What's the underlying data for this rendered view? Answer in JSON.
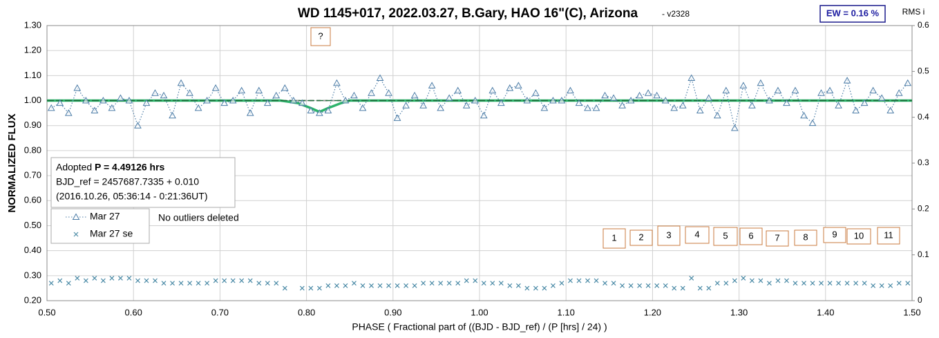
{
  "chart_data": {
    "type": "scatter",
    "title": "WD 1145+017, 2022.03.27, B.Gary, HAO 16\"(C), Arizona",
    "subtitle": "- v2328",
    "ew_label": "EW = 0.16 %",
    "y2_label": "RMS i",
    "ylabel": "NORMALIZED FLUX",
    "xlabel": "PHASE ( Fractional part of ((BJD - BJD_ref) / (P [hrs] / 24) )",
    "info": {
      "prefix": "Adopted",
      "period": "P = 4.49126 hrs",
      "line2": "BJD_ref = 2457687.7335 + 0.010",
      "line3": "(2016.10.26, 05:36:14 - 0:21:36UT)"
    },
    "note": "No outliers deleted",
    "annotations": [
      "?",
      "1",
      "2",
      "3",
      "4",
      "5",
      "6",
      "7",
      "8",
      "9",
      "10",
      "11"
    ],
    "xlim": [
      0.5,
      1.5
    ],
    "xticks": [
      {
        "value": 0.5,
        "label": "0.50"
      },
      {
        "value": 0.6,
        "label": "0.60"
      },
      {
        "value": 0.7,
        "label": "0.70"
      },
      {
        "value": 0.8,
        "label": "0.80"
      },
      {
        "value": 0.9,
        "label": "0.90"
      },
      {
        "value": 1.0,
        "label": "1.00"
      },
      {
        "value": 1.1,
        "label": "1.10"
      },
      {
        "value": 1.2,
        "label": "1.20"
      },
      {
        "value": 1.3,
        "label": "1.30"
      },
      {
        "value": 1.4,
        "label": "1.40"
      },
      {
        "value": 1.5,
        "label": "1.50"
      }
    ],
    "ylim": [
      0.2,
      1.3
    ],
    "yticks": [
      {
        "value": 0.2,
        "label": "0.20"
      },
      {
        "value": 0.3,
        "label": "0.30"
      },
      {
        "value": 0.4,
        "label": "0.40"
      },
      {
        "value": 0.5,
        "label": "0.50"
      },
      {
        "value": 0.6,
        "label": "0.60"
      },
      {
        "value": 0.7,
        "label": "0.70"
      },
      {
        "value": 0.8,
        "label": "0.80"
      },
      {
        "value": 0.9,
        "label": "0.90"
      },
      {
        "value": 1.0,
        "label": "1.00"
      },
      {
        "value": 1.1,
        "label": "1.10"
      },
      {
        "value": 1.2,
        "label": "1.20"
      },
      {
        "value": 1.3,
        "label": "1.30"
      }
    ],
    "y2lim": [
      0,
      0.6
    ],
    "y2ticks": [
      0,
      0.1,
      0.2,
      0.3,
      0.4,
      0.5,
      0.6
    ],
    "grid": true,
    "x": [
      0.505,
      0.515,
      0.525,
      0.535,
      0.545,
      0.555,
      0.565,
      0.575,
      0.585,
      0.595,
      0.605,
      0.615,
      0.625,
      0.635,
      0.645,
      0.655,
      0.665,
      0.675,
      0.685,
      0.695,
      0.705,
      0.715,
      0.725,
      0.735,
      0.745,
      0.755,
      0.765,
      0.775,
      0.785,
      0.795,
      0.805,
      0.815,
      0.825,
      0.835,
      0.845,
      0.855,
      0.865,
      0.875,
      0.885,
      0.895,
      0.905,
      0.915,
      0.925,
      0.935,
      0.945,
      0.955,
      0.965,
      0.975,
      0.985,
      0.995,
      1.005,
      1.015,
      1.025,
      1.035,
      1.045,
      1.055,
      1.065,
      1.075,
      1.085,
      1.095,
      1.105,
      1.115,
      1.125,
      1.135,
      1.145,
      1.155,
      1.165,
      1.175,
      1.185,
      1.195,
      1.205,
      1.215,
      1.225,
      1.235,
      1.245,
      1.255,
      1.265,
      1.275,
      1.285,
      1.295,
      1.305,
      1.315,
      1.325,
      1.335,
      1.345,
      1.355,
      1.365,
      1.375,
      1.385,
      1.395,
      1.405,
      1.415,
      1.425,
      1.435,
      1.445,
      1.455,
      1.465,
      1.475,
      1.485,
      1.495
    ],
    "series": [
      {
        "name": "Mar 27",
        "color": "#4a7ba6",
        "marker": "triangle",
        "values": [
          0.97,
          0.99,
          0.95,
          1.05,
          1.0,
          0.96,
          1.0,
          0.97,
          1.01,
          1.0,
          0.9,
          0.99,
          1.03,
          1.02,
          0.94,
          1.07,
          1.03,
          0.97,
          1.0,
          1.05,
          0.99,
          1.0,
          1.04,
          0.95,
          1.04,
          0.99,
          1.02,
          1.05,
          1.0,
          0.99,
          0.96,
          0.95,
          0.96,
          1.07,
          1.0,
          1.02,
          0.97,
          1.03,
          1.09,
          1.03,
          0.93,
          0.98,
          1.02,
          0.98,
          1.06,
          0.97,
          1.01,
          1.04,
          0.98,
          1.0,
          0.94,
          1.04,
          0.99,
          1.05,
          1.06,
          1.0,
          1.03,
          0.97,
          1.0,
          1.0,
          1.04,
          0.99,
          0.97,
          0.97,
          1.02,
          1.01,
          0.98,
          1.0,
          1.02,
          1.03,
          1.02,
          1.0,
          0.97,
          0.98,
          1.09,
          0.96,
          1.01,
          0.94,
          1.04,
          0.89,
          1.06,
          0.98,
          1.07,
          1.0,
          1.04,
          0.99,
          1.04,
          0.94,
          0.91,
          1.03,
          1.04,
          0.98,
          1.08,
          0.96,
          0.99,
          1.04,
          1.01,
          0.96,
          1.03,
          1.07
        ]
      },
      {
        "name": "Mar 27 se",
        "color": "#4a8aa6",
        "marker": "cross",
        "values": [
          0.27,
          0.28,
          0.27,
          0.29,
          0.28,
          0.29,
          0.28,
          0.29,
          0.29,
          0.29,
          0.28,
          0.28,
          0.28,
          0.27,
          0.27,
          0.27,
          0.27,
          0.27,
          0.27,
          0.28,
          0.28,
          0.28,
          0.28,
          0.28,
          0.27,
          0.27,
          0.27,
          0.25,
          null,
          0.25,
          0.25,
          0.25,
          0.26,
          0.26,
          0.26,
          0.27,
          0.26,
          0.26,
          0.26,
          0.26,
          0.26,
          0.26,
          0.26,
          0.27,
          0.27,
          0.27,
          0.27,
          0.27,
          0.28,
          0.28,
          0.27,
          0.27,
          0.27,
          0.26,
          0.26,
          0.25,
          0.25,
          0.25,
          0.26,
          0.27,
          0.28,
          0.28,
          0.28,
          0.28,
          0.27,
          0.27,
          0.26,
          0.26,
          0.26,
          0.26,
          0.26,
          0.26,
          0.25,
          0.25,
          0.29,
          0.25,
          0.25,
          0.27,
          0.27,
          0.28,
          0.29,
          0.28,
          0.28,
          0.27,
          0.28,
          0.28,
          0.27,
          0.27,
          0.27,
          0.27,
          0.27,
          0.27,
          0.27,
          0.27,
          0.27,
          0.26,
          0.26,
          0.26,
          0.27,
          0.27
        ]
      }
    ],
    "baseline": 1.0,
    "model": {
      "color": "#2db36b",
      "x": [
        0.5,
        0.77,
        0.79,
        0.805,
        0.815,
        0.825,
        0.84,
        0.85,
        1.5
      ],
      "values": [
        1.0,
        1.0,
        0.99,
        0.97,
        0.955,
        0.97,
        0.99,
        1.0,
        1.0
      ]
    }
  }
}
